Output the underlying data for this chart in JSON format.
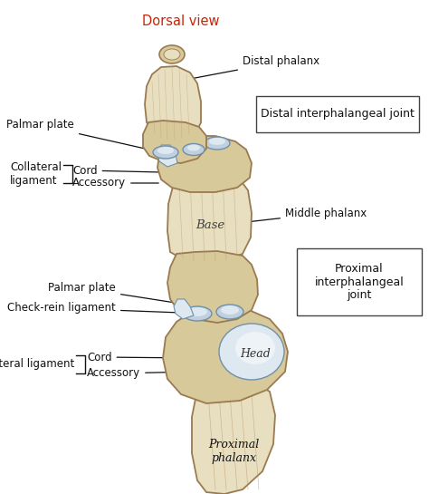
{
  "title": "Dorsal view",
  "title_color": "#cc2200",
  "background_color": "#ffffff",
  "bone_fill": "#d8c99a",
  "bone_fill2": "#e8dfc0",
  "bone_edge": "#9a7a50",
  "bone_shadow": "#b89a6a",
  "cartilage_fill": "#c0d0de",
  "cartilage_fill2": "#dde8f0",
  "cartilage_edge": "#7090a8",
  "line_color": "#111111",
  "text_color": "#111111",
  "labels": {
    "distal_phalanx": "Distal phalanx",
    "palmar_plate_top": "Palmar plate",
    "collateral_lig_top": "Collateral\nligament",
    "cord_top": "Cord",
    "accessory_top": "Accessory",
    "middle_phalanx": "Middle phalanx",
    "base": "Base",
    "palmar_plate_bot": "Palmar plate",
    "check_rein": "Check-rein ligament",
    "collateral_lig_bot": "Collateral ligament",
    "cord_bot": "Cord",
    "accessory_bot": "Accessory",
    "head": "Head",
    "proximal_phalanx": "Proximal\nphalanx",
    "distal_joint": "Distal interphalangeal joint",
    "proximal_joint": "Proximal\ninterphalangeal\njoint"
  },
  "figsize": [
    4.74,
    5.45
  ],
  "dpi": 100
}
